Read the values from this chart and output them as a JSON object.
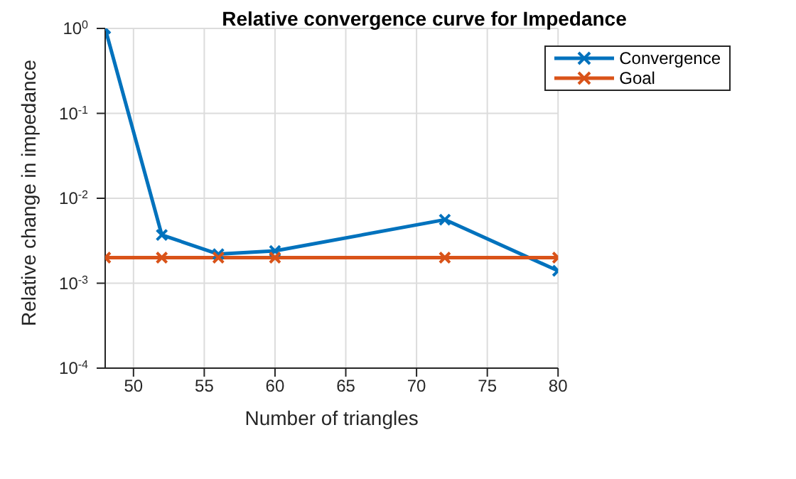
{
  "chart_data": {
    "type": "line",
    "title": "Relative convergence curve for Impedance",
    "xlabel": "Number of triangles",
    "ylabel": "Relative change in impedance",
    "x": [
      48,
      52,
      56,
      60,
      72,
      80
    ],
    "series": [
      {
        "name": "Convergence",
        "color": "#0072bd",
        "values": [
          1,
          0.0037,
          0.0022,
          0.0024,
          0.0056,
          0.0014
        ]
      },
      {
        "name": "Goal",
        "color": "#d95319",
        "values": [
          0.002,
          0.002,
          0.002,
          0.002,
          0.002,
          0.002
        ]
      }
    ],
    "xlim": [
      48,
      80
    ],
    "xticks": [
      50,
      55,
      60,
      65,
      70,
      75,
      80
    ],
    "ylim": [
      0.0001,
      1
    ],
    "yticks": [
      {
        "value": 0.0001,
        "label": "10$^{-4}$"
      },
      {
        "value": 0.001,
        "label": "10$^{-3}$"
      },
      {
        "value": 0.01,
        "label": "10$^{-2}$"
      },
      {
        "value": 0.1,
        "label": "10$^{-1}$"
      },
      {
        "value": 1,
        "label": "10$^{0}$"
      }
    ],
    "log": "y",
    "grid": true,
    "legend": "top right",
    "marker": "cross",
    "line_style": "solid"
  }
}
